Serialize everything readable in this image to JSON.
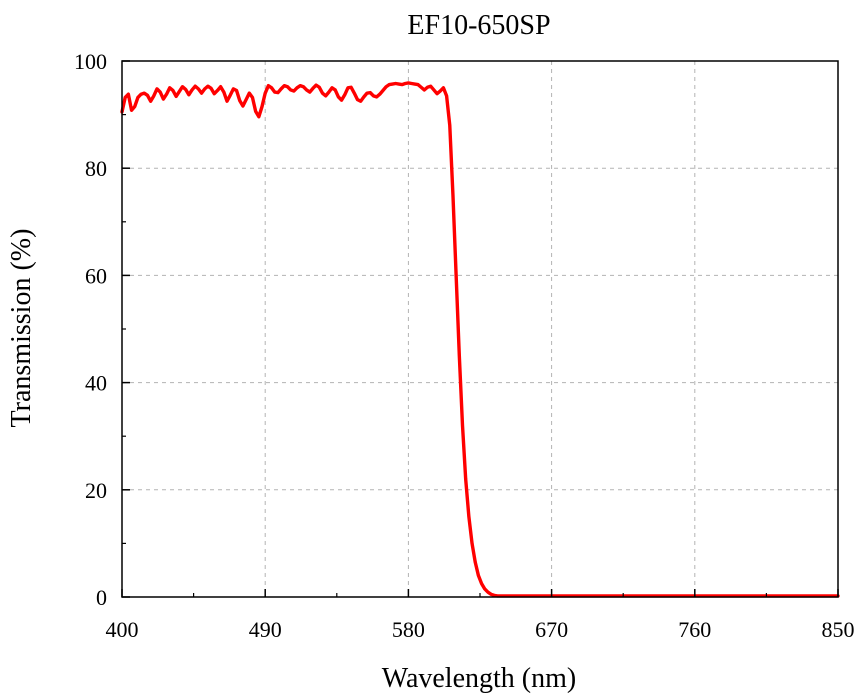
{
  "chart_data": {
    "type": "line",
    "title": "EF10-650SP",
    "xlabel": "Wavelength (nm)",
    "ylabel": "Transmission (%)",
    "xlim": [
      400,
      850
    ],
    "ylim": [
      0,
      100
    ],
    "x_ticks": [
      400,
      490,
      580,
      670,
      760,
      850
    ],
    "y_ticks": [
      0,
      20,
      40,
      60,
      80,
      100
    ],
    "x_tick_labels": [
      "400",
      "490",
      "580",
      "670",
      "760",
      "850"
    ],
    "y_tick_labels": [
      "0",
      "20",
      "40",
      "60",
      "80",
      "100"
    ],
    "grid": true,
    "colors": {
      "series": "#ff0000",
      "grid": "#b3b3b3",
      "axis": "#000000"
    },
    "series": [
      {
        "x": [
          400,
          402,
          404,
          406,
          408,
          410,
          412,
          414,
          416,
          418,
          420,
          422,
          424,
          426,
          428,
          430,
          432,
          434,
          436,
          438,
          440,
          442,
          444,
          446,
          448,
          450,
          452,
          454,
          456,
          458,
          460,
          462,
          464,
          466,
          468,
          470,
          472,
          474,
          476,
          478,
          480,
          482,
          484,
          486,
          488,
          490,
          492,
          494,
          496,
          498,
          500,
          502,
          504,
          506,
          508,
          510,
          512,
          514,
          516,
          518,
          520,
          522,
          524,
          526,
          528,
          530,
          532,
          534,
          536,
          538,
          540,
          542,
          544,
          546,
          548,
          550,
          552,
          554,
          556,
          558,
          560,
          562,
          564,
          566,
          568,
          570,
          572,
          574,
          576,
          578,
          580,
          582,
          584,
          586,
          588,
          590,
          592,
          594,
          596,
          598,
          600,
          602,
          604,
          606,
          608,
          610,
          612,
          614,
          616,
          618,
          620,
          622,
          624,
          626,
          628,
          630,
          632,
          634,
          636,
          638,
          640,
          641,
          642,
          643,
          644,
          645,
          646,
          647,
          648,
          649,
          650,
          651,
          652,
          653,
          654,
          655,
          656,
          658,
          660,
          665,
          670,
          700,
          760,
          800,
          850
        ],
        "y": [
          90.5,
          93.2,
          93.8,
          90.8,
          91.5,
          93.2,
          93.8,
          94.0,
          93.6,
          92.5,
          93.5,
          94.8,
          94.2,
          92.9,
          93.8,
          95.0,
          94.5,
          93.4,
          94.3,
          95.2,
          94.7,
          93.7,
          94.6,
          95.3,
          94.8,
          94.0,
          94.8,
          95.3,
          94.9,
          93.9,
          94.5,
          95.2,
          94.2,
          92.5,
          93.6,
          94.8,
          94.5,
          92.6,
          91.6,
          92.8,
          94.0,
          93.2,
          90.6,
          89.6,
          91.5,
          94.0,
          95.4,
          95.0,
          94.2,
          94.1,
          94.8,
          95.4,
          95.2,
          94.6,
          94.4,
          95.0,
          95.4,
          95.2,
          94.6,
          94.2,
          94.9,
          95.5,
          95.1,
          94.0,
          93.5,
          94.2,
          95.0,
          94.6,
          93.3,
          92.7,
          93.7,
          95.0,
          95.1,
          94.0,
          92.8,
          92.5,
          93.3,
          94.0,
          94.1,
          93.5,
          93.3,
          93.8,
          94.5,
          95.2,
          95.6,
          95.7,
          95.8,
          95.7,
          95.6,
          95.8,
          95.9,
          95.8,
          95.7,
          95.6,
          95.1,
          94.6,
          95.1,
          95.3,
          94.6,
          93.9,
          94.4,
          95.0,
          93.5,
          88.0,
          75.0,
          60.0,
          45.0,
          32.0,
          22.0,
          15.0,
          10.0,
          6.5,
          4.0,
          2.5,
          1.5,
          0.9,
          0.5,
          0.3,
          0.2,
          0.2,
          0.2,
          0.2,
          0.2,
          0.2,
          0.2,
          0.2,
          0.2,
          0.2,
          0.2,
          0.2,
          0.2,
          0.2,
          0.2,
          0.2,
          0.2,
          0.2,
          0.2,
          0.2,
          0.2,
          0.2,
          0.2,
          0.2,
          0.2,
          0.2,
          0.2
        ]
      }
    ]
  }
}
